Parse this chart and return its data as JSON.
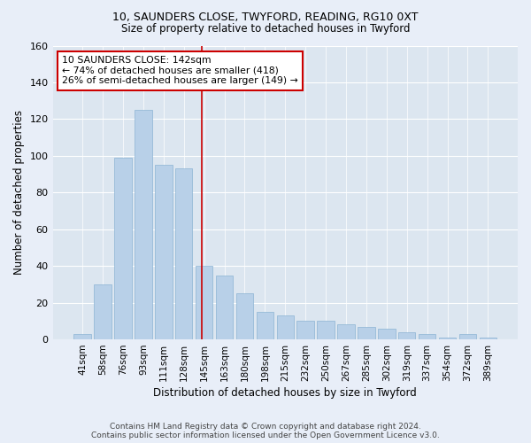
{
  "title1": "10, SAUNDERS CLOSE, TWYFORD, READING, RG10 0XT",
  "title2": "Size of property relative to detached houses in Twyford",
  "xlabel": "Distribution of detached houses by size in Twyford",
  "ylabel": "Number of detached properties",
  "categories": [
    "41sqm",
    "58sqm",
    "76sqm",
    "93sqm",
    "111sqm",
    "128sqm",
    "145sqm",
    "163sqm",
    "180sqm",
    "198sqm",
    "215sqm",
    "232sqm",
    "250sqm",
    "267sqm",
    "285sqm",
    "302sqm",
    "319sqm",
    "337sqm",
    "354sqm",
    "372sqm",
    "389sqm"
  ],
  "values": [
    3,
    30,
    99,
    125,
    95,
    93,
    40,
    35,
    25,
    15,
    13,
    10,
    10,
    8,
    7,
    6,
    4,
    3,
    1,
    3,
    1
  ],
  "bar_color": "#b8d0e8",
  "bar_edge_color": "#8cb4d4",
  "highlight_line_label": "10 SAUNDERS CLOSE: 142sqm",
  "annotation_line1": "← 74% of detached houses are smaller (418)",
  "annotation_line2": "26% of semi-detached houses are larger (149) →",
  "annotation_box_color": "#ffffff",
  "annotation_box_edge": "#cc0000",
  "line_color": "#cc0000",
  "ylim": [
    0,
    160
  ],
  "fig_bg": "#e8eef8",
  "ax_bg": "#dce6f0",
  "footer1": "Contains HM Land Registry data © Crown copyright and database right 2024.",
  "footer2": "Contains public sector information licensed under the Open Government Licence v3.0."
}
